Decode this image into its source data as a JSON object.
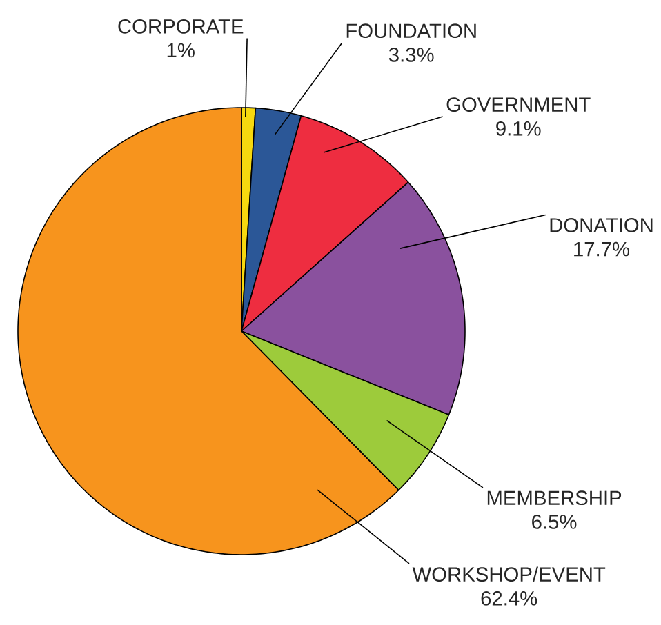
{
  "chart_data": {
    "type": "pie",
    "categories": [
      "CORPORATE",
      "FOUNDATION",
      "GOVERNMENT",
      "DONATION",
      "MEMBERSHIP",
      "WORKSHOP/EVENT"
    ],
    "values": [
      1,
      3.3,
      9.1,
      17.7,
      6.5,
      62.4
    ],
    "value_labels": [
      "1%",
      "3.3%",
      "9.1%",
      "17.7%",
      "6.5%",
      "62.4%"
    ],
    "colors": [
      "#f6d80f",
      "#2b5797",
      "#ee2d40",
      "#8a519e",
      "#9dcb3b",
      "#f7941d"
    ]
  }
}
